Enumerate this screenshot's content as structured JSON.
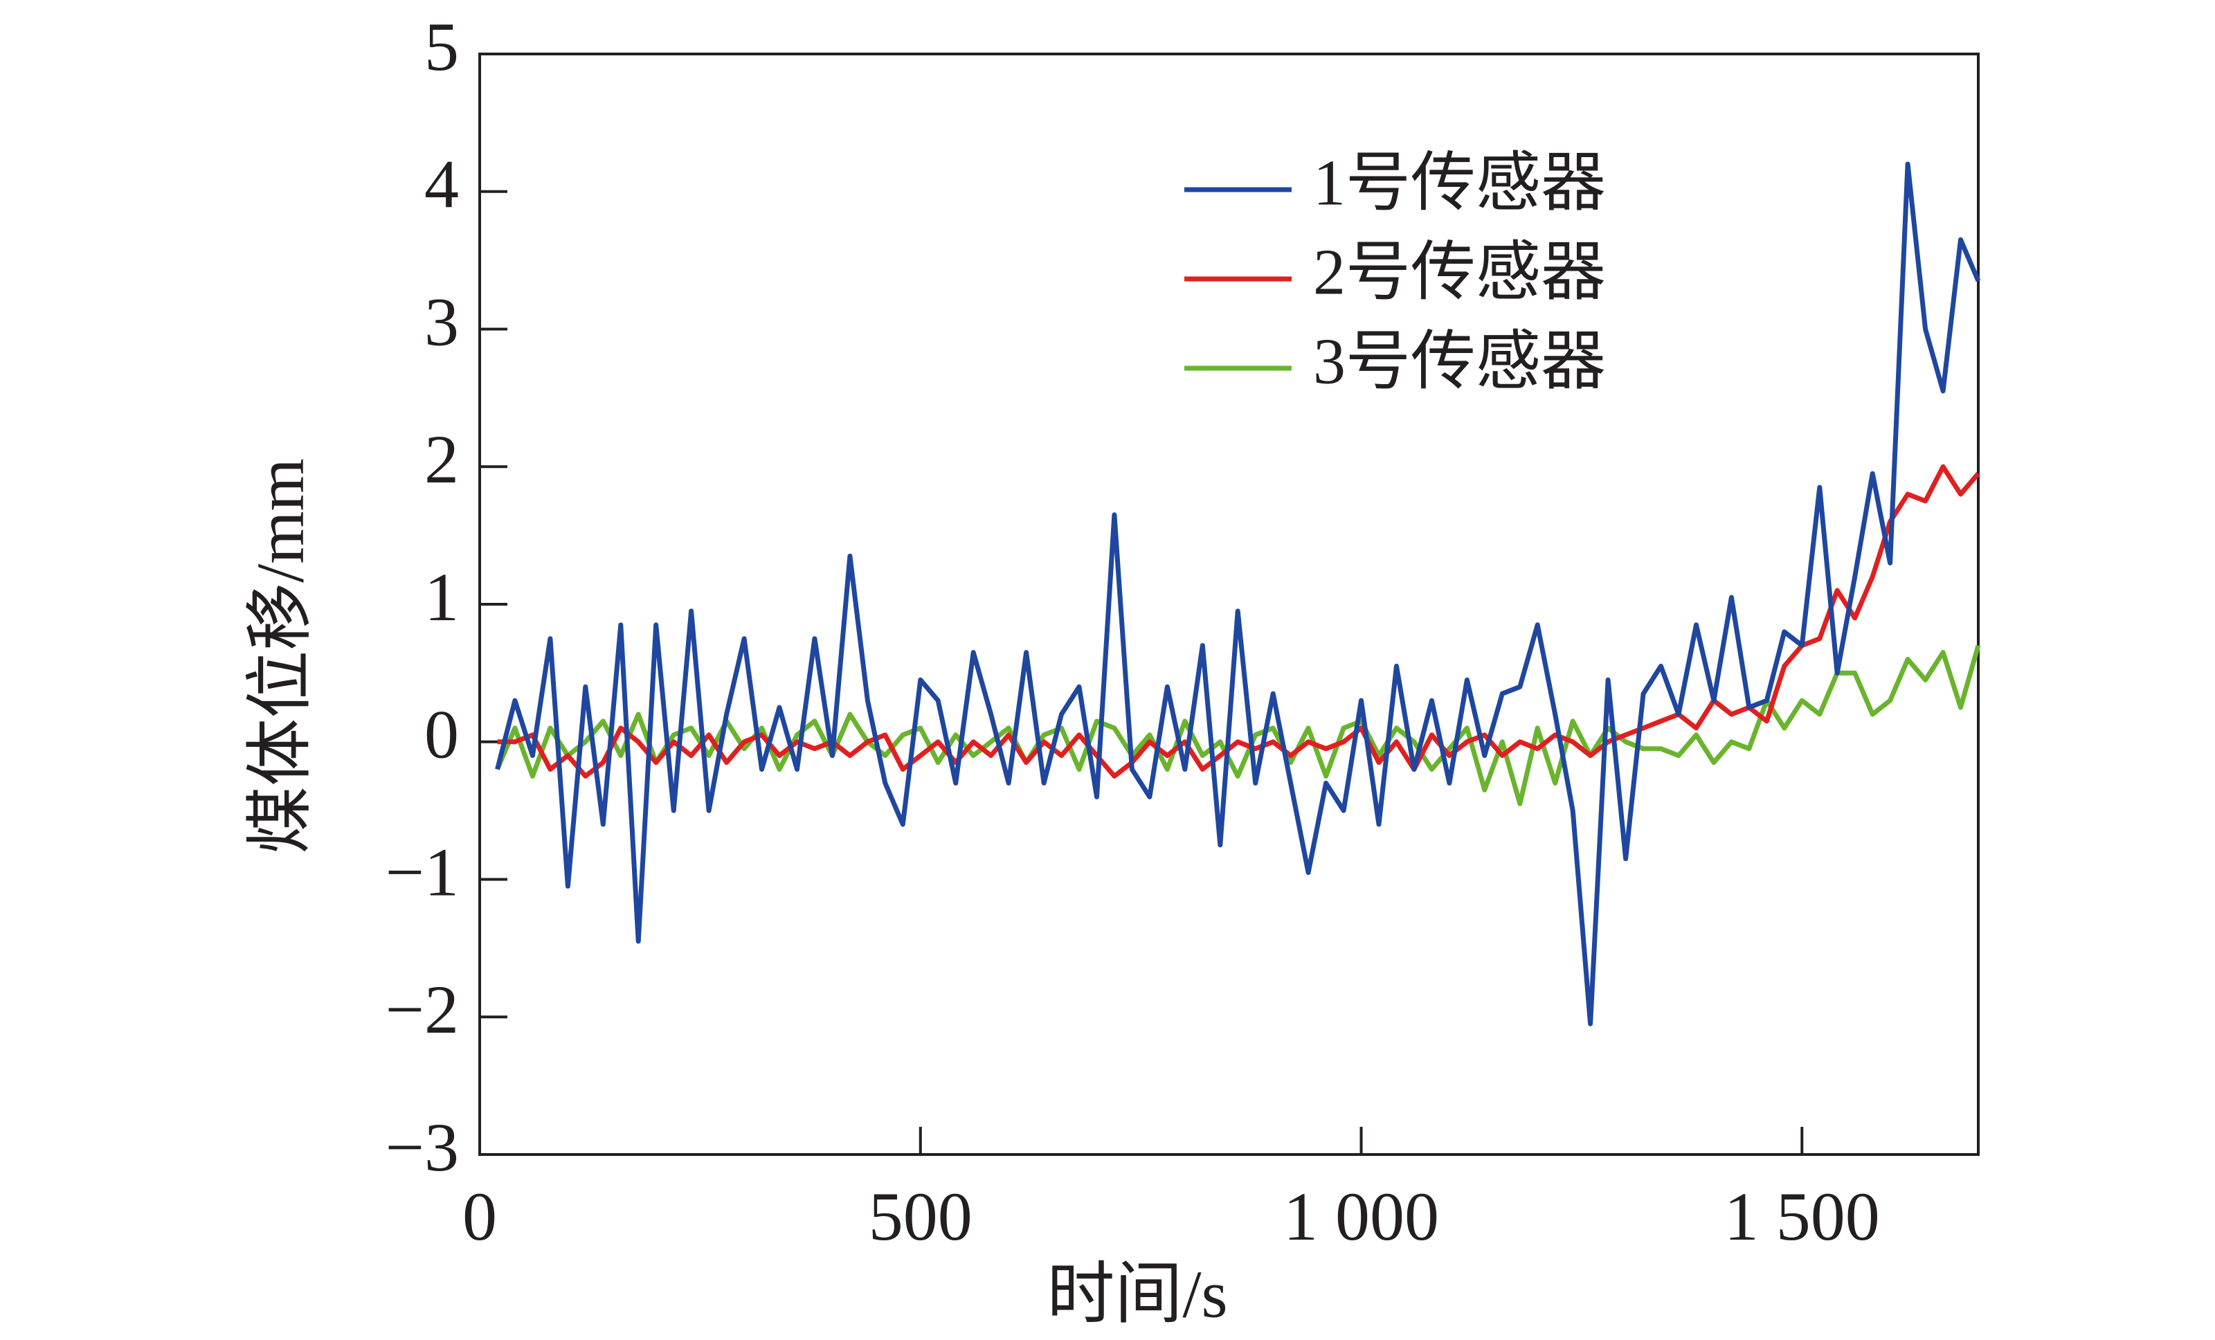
{
  "chart_data": {
    "type": "line",
    "xlabel": "时间/s",
    "ylabel": "煤体位移/mm",
    "x": [
      20,
      40,
      60,
      80,
      100,
      120,
      140,
      160,
      180,
      200,
      220,
      240,
      260,
      280,
      300,
      320,
      340,
      360,
      380,
      400,
      420,
      440,
      460,
      480,
      500,
      520,
      540,
      560,
      580,
      600,
      620,
      640,
      660,
      680,
      700,
      720,
      740,
      760,
      780,
      800,
      820,
      840,
      860,
      880,
      900,
      920,
      940,
      960,
      980,
      1000,
      1020,
      1040,
      1060,
      1080,
      1100,
      1120,
      1140,
      1160,
      1180,
      1200,
      1220,
      1240,
      1260,
      1280,
      1300,
      1320,
      1340,
      1360,
      1380,
      1400,
      1420,
      1440,
      1460,
      1480,
      1500,
      1520,
      1540,
      1560,
      1580,
      1600,
      1620,
      1640,
      1660,
      1680,
      1700
    ],
    "series": [
      {
        "name": "1号传感器",
        "color": "#1f47a0",
        "values": [
          -0.2,
          0.3,
          -0.1,
          0.75,
          -1.05,
          0.4,
          -0.6,
          0.85,
          -1.45,
          0.85,
          -0.5,
          0.95,
          -0.5,
          0.2,
          0.75,
          -0.2,
          0.25,
          -0.2,
          0.75,
          -0.1,
          1.35,
          0.3,
          -0.3,
          -0.6,
          0.45,
          0.3,
          -0.3,
          0.65,
          0.2,
          -0.3,
          0.65,
          -0.3,
          0.2,
          0.4,
          -0.4,
          1.65,
          -0.2,
          -0.4,
          0.4,
          -0.2,
          0.7,
          -0.75,
          0.95,
          -0.3,
          0.35,
          -0.3,
          -0.95,
          -0.3,
          -0.5,
          0.3,
          -0.6,
          0.55,
          -0.2,
          0.3,
          -0.3,
          0.45,
          -0.1,
          0.35,
          0.4,
          0.85,
          0.2,
          -0.5,
          -2.05,
          0.45,
          -0.85,
          0.35,
          0.55,
          0.2,
          0.85,
          0.3,
          1.05,
          0.25,
          0.3,
          0.8,
          0.7,
          1.85,
          0.5,
          1.2,
          1.95,
          1.3,
          4.2,
          3.0,
          2.55,
          3.65,
          3.35
        ]
      },
      {
        "name": "2号传感器",
        "color": "#e02020",
        "values": [
          0,
          0,
          0.05,
          -0.2,
          -0.1,
          -0.25,
          -0.15,
          0.1,
          0,
          -0.15,
          0,
          -0.1,
          0.05,
          -0.15,
          0,
          0.05,
          -0.1,
          0,
          -0.05,
          0,
          -0.1,
          0,
          0.05,
          -0.2,
          -0.1,
          0,
          -0.15,
          0,
          -0.1,
          0.05,
          -0.15,
          0,
          -0.1,
          0.05,
          -0.1,
          -0.25,
          -0.15,
          0,
          -0.1,
          0,
          -0.2,
          -0.1,
          0,
          -0.05,
          0,
          -0.1,
          0,
          -0.05,
          0,
          0.1,
          -0.15,
          0,
          -0.2,
          0.05,
          -0.1,
          0,
          0.05,
          -0.1,
          0,
          -0.05,
          0.05,
          0,
          -0.1,
          0,
          0.05,
          0.1,
          0.15,
          0.2,
          0.1,
          0.3,
          0.2,
          0.25,
          0.15,
          0.55,
          0.7,
          0.75,
          1.1,
          0.9,
          1.2,
          1.6,
          1.8,
          1.75,
          2.0,
          1.8,
          1.95
        ]
      },
      {
        "name": "3号传感器",
        "color": "#6ab42d",
        "values": [
          -0.2,
          0.1,
          -0.25,
          0.1,
          -0.1,
          0,
          0.15,
          -0.1,
          0.2,
          -0.15,
          0.05,
          0.1,
          -0.1,
          0.15,
          -0.05,
          0.1,
          -0.2,
          0.05,
          0.15,
          -0.1,
          0.2,
          0,
          -0.1,
          0.05,
          0.1,
          -0.15,
          0.05,
          -0.1,
          0,
          0.1,
          -0.15,
          0.05,
          0.1,
          -0.2,
          0.15,
          0.1,
          -0.1,
          0.05,
          -0.2,
          0.15,
          -0.1,
          0,
          -0.25,
          0.05,
          0.1,
          -0.15,
          0.1,
          -0.25,
          0.1,
          0.15,
          -0.1,
          0.1,
          0,
          -0.2,
          -0.05,
          0.1,
          -0.35,
          0,
          -0.45,
          0.1,
          -0.3,
          0.15,
          -0.1,
          0.1,
          0,
          -0.05,
          -0.05,
          -0.1,
          0.05,
          -0.15,
          0,
          -0.05,
          0.3,
          0.1,
          0.3,
          0.2,
          0.5,
          0.5,
          0.2,
          0.3,
          0.6,
          0.45,
          0.65,
          0.25,
          0.7
        ]
      }
    ],
    "xlim": [
      0,
      1700
    ],
    "xticks": [
      0,
      500,
      {
        "value": 1000,
        "label": "1 000"
      },
      {
        "value": 1500,
        "label": "1 500"
      }
    ],
    "ylim": [
      -3,
      5
    ],
    "yticks": [
      {
        "value": -3,
        "label": "−3"
      },
      {
        "value": -2,
        "label": "−2"
      },
      {
        "value": -1,
        "label": "−1"
      },
      0,
      1,
      2,
      3,
      4,
      5
    ],
    "legend": "upper right",
    "grid": false
  }
}
